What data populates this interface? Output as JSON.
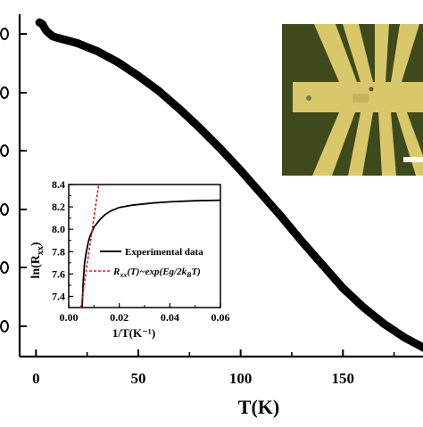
{
  "chart_data": [
    {
      "type": "scatter",
      "xlabel": "T(K)",
      "ylabel": "",
      "xlim": [
        -8,
        190
      ],
      "x_ticks": [
        0,
        50,
        100,
        150
      ],
      "x_tick_labels": [
        "0",
        "50",
        "100",
        "150"
      ],
      "y_tick_labels": [
        "",
        "",
        "",
        "",
        "",
        ""
      ],
      "series": [
        {
          "x": [
            1.7,
            3,
            5,
            8,
            10,
            15,
            20,
            30,
            40,
            50,
            60,
            70,
            80,
            90,
            100,
            110,
            120,
            130,
            140,
            150,
            160,
            170,
            180,
            190
          ],
          "y": [
            8.27,
            8.265,
            8.24,
            8.22,
            8.215,
            8.205,
            8.195,
            8.165,
            8.125,
            8.075,
            8.02,
            7.955,
            7.885,
            7.81,
            7.73,
            7.645,
            7.56,
            7.47,
            7.385,
            7.3,
            7.23,
            7.17,
            7.12,
            7.08
          ],
          "color": "#000000"
        }
      ]
    },
    {
      "type": "line",
      "xlabel": "1/T(K⁻¹)",
      "ylabel": "ln(R",
      "ylabel_sub": "xx",
      "ylabel_close": ")",
      "xlim": [
        0,
        0.06
      ],
      "ylim": [
        7.3,
        8.4
      ],
      "x_ticks": [
        0,
        0.02,
        0.04,
        0.06
      ],
      "x_tick_labels": [
        "0.00",
        "0.02",
        "0.04",
        "0.06"
      ],
      "y_ticks": [
        7.4,
        7.6,
        7.8,
        8.0,
        8.2,
        8.4
      ],
      "y_tick_labels": [
        "7.4",
        "7.6",
        "7.8",
        "8.0",
        "8.2",
        "8.4"
      ],
      "legend_position": "center-right",
      "series": [
        {
          "name": "Experimental data",
          "color": "#000000",
          "x": [
            0.0053,
            0.0058,
            0.0063,
            0.007,
            0.0077,
            0.0083,
            0.01,
            0.0125,
            0.0143,
            0.0167,
            0.02,
            0.025,
            0.0333,
            0.04,
            0.05,
            0.06
          ],
          "y": [
            7.3,
            7.55,
            7.7,
            7.8,
            7.88,
            7.93,
            8.02,
            8.09,
            8.13,
            8.165,
            8.195,
            8.215,
            8.235,
            8.245,
            8.255,
            8.26
          ]
        },
        {
          "name": "R_xx(T)~exp(Eg/2k_BT)",
          "color": "#dd1e1e",
          "dashed": true,
          "x": [
            0.0048,
            0.012
          ],
          "y": [
            7.3,
            8.42
          ]
        }
      ],
      "legend": {
        "experimental_label": "Experimental data",
        "fit_label_parts": [
          "R",
          "xx",
          "(T)~exp(Eg/2k",
          "B",
          "T)"
        ]
      }
    }
  ],
  "inset_photo": {
    "description_colors": {
      "background": "#3e4a1c",
      "electrode": "#d8c86a"
    }
  }
}
